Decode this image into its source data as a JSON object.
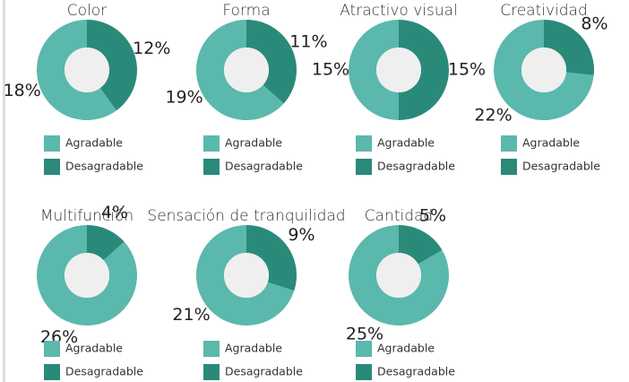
{
  "chart_data": [
    {
      "type": "pie",
      "title": "Color",
      "categories": [
        "Agradable",
        "Desagradable"
      ],
      "values": [
        18,
        12
      ],
      "value_labels": [
        "18%",
        "12%"
      ],
      "colors": [
        "#5bb8ac",
        "#2a8a7a"
      ]
    },
    {
      "type": "pie",
      "title": "Forma",
      "categories": [
        "Agradable",
        "Desagradable"
      ],
      "values": [
        19,
        11
      ],
      "value_labels": [
        "19%",
        "11%"
      ],
      "colors": [
        "#5bb8ac",
        "#2a8a7a"
      ]
    },
    {
      "type": "pie",
      "title": "Atractivo visual",
      "categories": [
        "Agradable",
        "Desagradable"
      ],
      "values": [
        15,
        15
      ],
      "value_labels": [
        "15%",
        "15%"
      ],
      "colors": [
        "#5bb8ac",
        "#2a8a7a"
      ]
    },
    {
      "type": "pie",
      "title": "Creatividad",
      "categories": [
        "Agradable",
        "Desagradable"
      ],
      "values": [
        22,
        8
      ],
      "value_labels": [
        "22%",
        "8%"
      ],
      "colors": [
        "#5bb8ac",
        "#2a8a7a"
      ]
    },
    {
      "type": "pie",
      "title": "Multifunción",
      "categories": [
        "Agradable",
        "Desagradable"
      ],
      "values": [
        26,
        4
      ],
      "value_labels": [
        "26%",
        "4%"
      ],
      "colors": [
        "#5bb8ac",
        "#2a8a7a"
      ]
    },
    {
      "type": "pie",
      "title": "Sensación de tranquilidad",
      "categories": [
        "Agradable",
        "Desagradable"
      ],
      "values": [
        21,
        9
      ],
      "value_labels": [
        "21%",
        "9%"
      ],
      "colors": [
        "#5bb8ac",
        "#2a8a7a"
      ]
    },
    {
      "type": "pie",
      "title": "Cantidad",
      "categories": [
        "Agradable",
        "Desagradable"
      ],
      "values": [
        25,
        5
      ],
      "value_labels": [
        "25%",
        "5%"
      ],
      "colors": [
        "#5bb8ac",
        "#2a8a7a"
      ]
    }
  ]
}
